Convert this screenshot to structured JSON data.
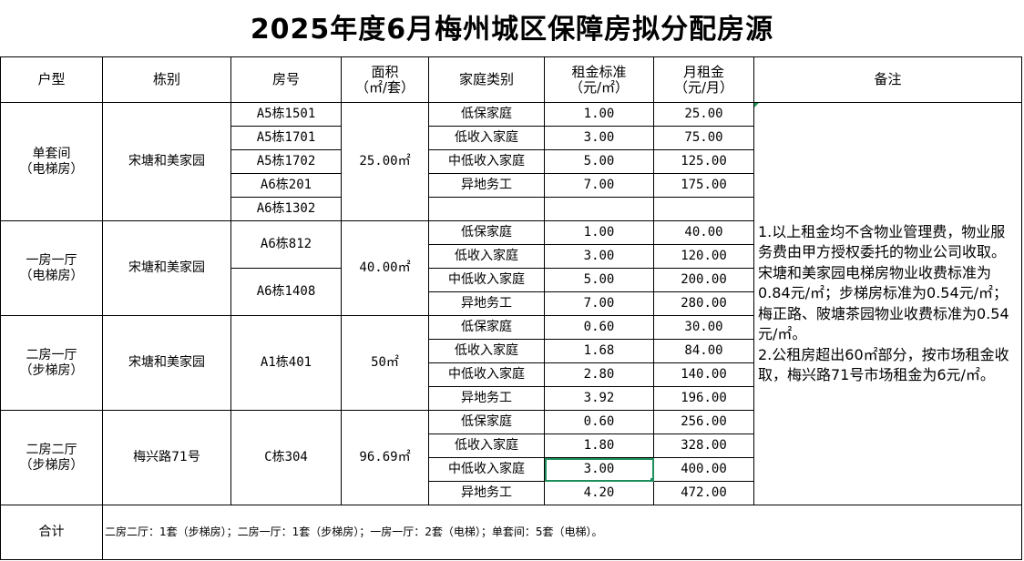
{
  "title": "2025年度6月梅州城区保障房拟分配房源",
  "headers": [
    "户型",
    "栋别",
    "房号",
    "面积\n（㎡/套）",
    "家庭类别",
    "租金标准\n（元/㎡）",
    "月租金\n（元/月）",
    "备注"
  ],
  "groups": [
    {
      "type": "单套间\n（电梯房）",
      "building": "宋塘和美家园",
      "area": "25.00㎡",
      "rooms": [
        {
          "label": "A5栋1501",
          "span": 1
        },
        {
          "label": "A5栋1701",
          "span": 1
        },
        {
          "label": "A5栋1702",
          "span": 1
        },
        {
          "label": "A6栋201",
          "span": 1
        },
        {
          "label": "A6栋1302",
          "span": 1
        }
      ],
      "rows": [
        {
          "family": "低保家庭",
          "rate": "1.00",
          "rent": "25.00"
        },
        {
          "family": "低收入家庭",
          "rate": "3.00",
          "rent": "75.00"
        },
        {
          "family": "中低收入家庭",
          "rate": "5.00",
          "rent": "125.00"
        },
        {
          "family": "异地务工",
          "rate": "7.00",
          "rent": "175.00"
        },
        {
          "family": "",
          "rate": "",
          "rent": ""
        }
      ]
    },
    {
      "type": "一房一厅\n（电梯房）",
      "building": "宋塘和美家园",
      "area": "40.00㎡",
      "rooms": [
        {
          "label": "A6栋812",
          "span": 2
        },
        {
          "label": "A6栋1408",
          "span": 2
        }
      ],
      "rows": [
        {
          "family": "低保家庭",
          "rate": "1.00",
          "rent": "40.00"
        },
        {
          "family": "低收入家庭",
          "rate": "3.00",
          "rent": "120.00"
        },
        {
          "family": "中低收入家庭",
          "rate": "5.00",
          "rent": "200.00"
        },
        {
          "family": "异地务工",
          "rate": "7.00",
          "rent": "280.00"
        }
      ]
    },
    {
      "type": "二房一厅\n（步梯房）",
      "building": "宋塘和美家园",
      "area": "50㎡",
      "rooms": [
        {
          "label": "A1栋401",
          "span": 4
        }
      ],
      "rows": [
        {
          "family": "低保家庭",
          "rate": "0.60",
          "rent": "30.00"
        },
        {
          "family": "低收入家庭",
          "rate": "1.68",
          "rent": "84.00"
        },
        {
          "family": "中低收入家庭",
          "rate": "2.80",
          "rent": "140.00"
        },
        {
          "family": "异地务工",
          "rate": "3.92",
          "rent": "196.00"
        }
      ]
    },
    {
      "type": "二房二厅\n（步梯房）",
      "building": "梅兴路71号",
      "area": "96.69㎡",
      "rooms": [
        {
          "label": "C栋304",
          "span": 4
        }
      ],
      "rows": [
        {
          "family": "低保家庭",
          "rate": "0.60",
          "rent": "256.00"
        },
        {
          "family": "低收入家庭",
          "rate": "1.80",
          "rent": "328.00"
        },
        {
          "family": "中低收入家庭",
          "rate": "3.00",
          "rent": "400.00",
          "selected": true
        },
        {
          "family": "异地务工",
          "rate": "4.20",
          "rent": "472.00"
        }
      ]
    }
  ],
  "notes": "1.以上租金均不含物业管理费，物业服务费由甲方授权委托的物业公司收取。宋塘和美家园电梯房物业收费标准为0.84元/㎡；步梯房标准为0.54元/㎡；梅正路、陂塘茶园物业收费标准为0.54元/㎡。\n2.公租房超出60㎡部分，按市场租金收取，梅兴路71号市场租金为6元/㎡。",
  "total": {
    "label": "合计",
    "text": "二房二厅：1套（步梯房）；二房一厅：1套（步梯房）；一房一厅：2套（电梯）；单套间：5套（电梯）。"
  },
  "colors": {
    "selection": "#1e8f5c",
    "border": "#000000"
  }
}
